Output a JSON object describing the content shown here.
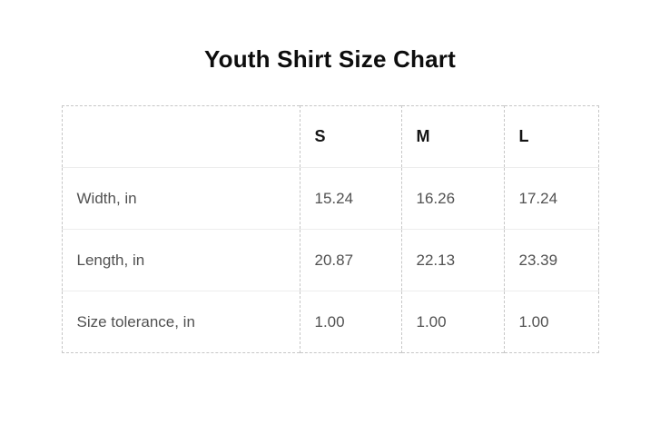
{
  "page": {
    "title": "Youth Shirt Size Chart"
  },
  "chart_data": {
    "type": "table",
    "title": "Youth Shirt Size Chart",
    "columns": [
      "",
      "S",
      "M",
      "L"
    ],
    "rows": [
      {
        "label": "Width, in",
        "values": [
          "15.24",
          "16.26",
          "17.24"
        ]
      },
      {
        "label": "Length, in",
        "values": [
          "20.87",
          "22.13",
          "23.39"
        ]
      },
      {
        "label": "Size tolerance, in",
        "values": [
          "1.00",
          "1.00",
          "1.00"
        ]
      }
    ]
  },
  "colors": {
    "title_text": "#0d0d0d",
    "header_text": "#141414",
    "body_text": "#515151",
    "dashed_border": "#c7c7c7",
    "row_separator": "#ededed",
    "background": "#ffffff"
  }
}
